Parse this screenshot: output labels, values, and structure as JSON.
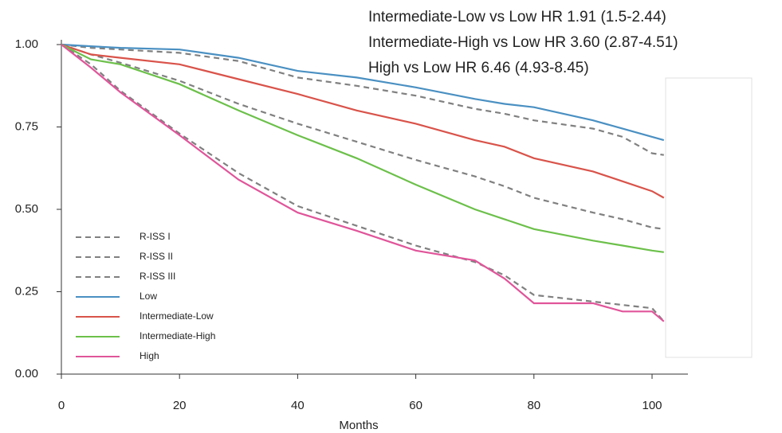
{
  "chart_data": {
    "type": "line",
    "x_label": "Months",
    "annotations": [
      "Intermediate-Low  vs Low HR 1.91 (1.5-2.44)",
      "Intermediate-High  vs Low HR 3.60 (2.87-4.51)",
      "High vs Low HR 6.46 (4.93-8.45)"
    ],
    "x": [
      0,
      5,
      10,
      20,
      30,
      40,
      50,
      60,
      70,
      75,
      80,
      90,
      95,
      100,
      102
    ],
    "series": [
      {
        "name": "R-ISS I",
        "color": "#808080",
        "dashed": true,
        "values": [
          1,
          0.99,
          0.985,
          0.975,
          0.95,
          0.9,
          0.875,
          0.845,
          0.805,
          0.79,
          0.77,
          0.745,
          0.72,
          0.67,
          0.665
        ]
      },
      {
        "name": "R-ISS II",
        "color": "#808080",
        "dashed": true,
        "values": [
          1,
          0.97,
          0.945,
          0.89,
          0.82,
          0.76,
          0.705,
          0.65,
          0.6,
          0.57,
          0.535,
          0.49,
          0.47,
          0.445,
          0.44
        ]
      },
      {
        "name": "R-ISS III",
        "color": "#808080",
        "dashed": true,
        "values": [
          1,
          0.94,
          0.86,
          0.73,
          0.61,
          0.51,
          0.45,
          0.39,
          0.34,
          0.3,
          0.24,
          0.22,
          0.21,
          0.2,
          0.16
        ]
      },
      {
        "name": "Low",
        "color": "#4a90c2",
        "dashed": false,
        "values": [
          1,
          0.995,
          0.99,
          0.985,
          0.96,
          0.92,
          0.9,
          0.87,
          0.835,
          0.82,
          0.81,
          0.77,
          0.745,
          0.72,
          0.71
        ]
      },
      {
        "name": "Intermediate-Low",
        "color": "#d9534a",
        "dashed": false,
        "values": [
          1,
          0.97,
          0.96,
          0.94,
          0.895,
          0.85,
          0.8,
          0.76,
          0.71,
          0.69,
          0.655,
          0.615,
          0.585,
          0.555,
          0.535
        ]
      },
      {
        "name": "Intermediate-High",
        "color": "#6cc04a",
        "dashed": false,
        "values": [
          1,
          0.955,
          0.94,
          0.88,
          0.8,
          0.725,
          0.655,
          0.575,
          0.5,
          0.47,
          0.44,
          0.405,
          0.39,
          0.375,
          0.37
        ]
      },
      {
        "name": "High",
        "color": "#e0559a",
        "dashed": false,
        "values": [
          1,
          0.93,
          0.855,
          0.725,
          0.59,
          0.49,
          0.435,
          0.375,
          0.345,
          0.29,
          0.215,
          0.215,
          0.19,
          0.19,
          0.16
        ]
      }
    ],
    "xlim": [
      0,
      106
    ],
    "xticks": [
      0,
      20,
      40,
      60,
      80,
      100
    ],
    "ylim": [
      0,
      1
    ],
    "yticks": [
      {
        "value": 0,
        "label": "0.00"
      },
      {
        "value": 0.25,
        "label": "0.25"
      },
      {
        "value": 0.5,
        "label": "0.50"
      },
      {
        "value": 0.75,
        "label": "0.75"
      },
      {
        "value": 1,
        "label": "1.00"
      }
    ],
    "legend": "lower left"
  }
}
